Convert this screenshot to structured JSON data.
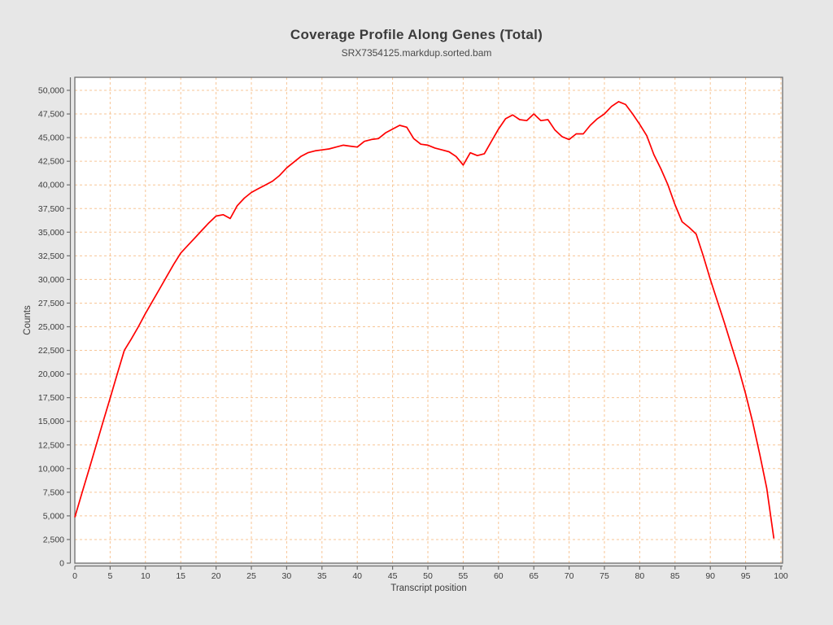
{
  "page": {
    "background": "#e7e7e7"
  },
  "header": {
    "title": "Coverage Profile Along Genes (Total)",
    "subtitle": "SRX7354125.markdup.sorted.bam"
  },
  "chart_data": {
    "type": "line",
    "title": "Coverage Profile Along Genes (Total)",
    "subtitle": "SRX7354125.markdup.sorted.bam",
    "xlabel": "Transcript position",
    "ylabel": "Counts",
    "xlim": [
      0,
      100
    ],
    "ylim": [
      0,
      50000
    ],
    "x_tick_step": 5,
    "y_tick_step": 2500,
    "grid": true,
    "legend": "none",
    "styles": {
      "line_color": "#ff0000",
      "grid_color": "#f7c596",
      "plot_bg": "#ffffff",
      "page_bg": "#e7e7e7",
      "frame_color": "#6e6e6e",
      "axis_color": "#6e6e6e",
      "text_color": "#3d3d3d"
    },
    "series": [
      {
        "name": "SRX7354125.markdup.sorted.bam",
        "x_start": 0,
        "x_step": 1,
        "values": [
          4850,
          7400,
          9900,
          12400,
          14950,
          17450,
          20000,
          22500,
          23700,
          25000,
          26400,
          27700,
          29000,
          30300,
          31600,
          32800,
          33600,
          34400,
          35200,
          36000,
          36700,
          36850,
          36450,
          37800,
          38600,
          39200,
          39600,
          40000,
          40400,
          41000,
          41800,
          42400,
          43000,
          43400,
          43600,
          43700,
          43800,
          44000,
          44200,
          44100,
          44000,
          44600,
          44800,
          44900,
          45500,
          45900,
          46300,
          46100,
          44900,
          44300,
          44200,
          43900,
          43700,
          43500,
          43000,
          42100,
          43400,
          43100,
          43300,
          44600,
          45900,
          47000,
          47400,
          46900,
          46800,
          47500,
          46800,
          46900,
          45800,
          45100,
          44800,
          45400,
          45400,
          46300,
          47000,
          47500,
          48300,
          48800,
          48500,
          47500,
          46400,
          45200,
          43200,
          41700,
          40000,
          37900,
          36100,
          35500,
          34800,
          32500,
          30000,
          27700,
          25400,
          23000,
          20600,
          17900,
          14900,
          11500,
          7900,
          2600
        ]
      }
    ]
  }
}
